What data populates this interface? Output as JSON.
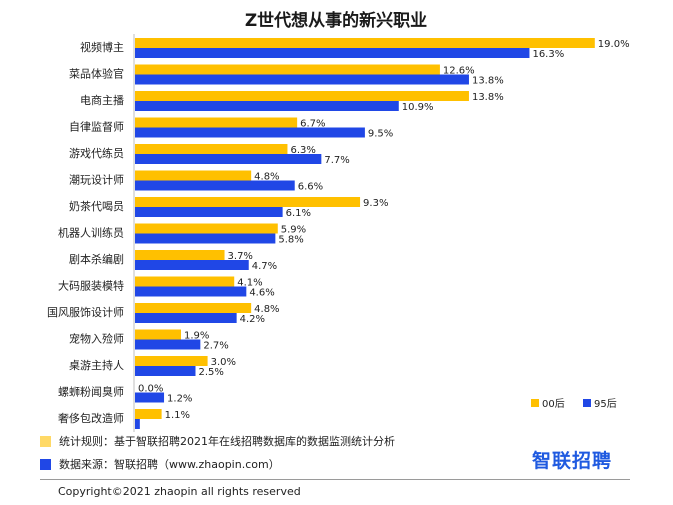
{
  "chart_data": {
    "type": "bar",
    "orientation": "horizontal",
    "title": "Z世代想从事的新兴职业",
    "categories": [
      "视频博主",
      "菜品体验官",
      "电商主播",
      "自律监督师",
      "游戏代练员",
      "潮玩设计师",
      "奶茶代喝员",
      "机器人训练员",
      "剧本杀编剧",
      "大码服装模特",
      "国风服饰设计师",
      "宠物入殓师",
      "桌游主持人",
      "螺蛳粉闻臭师",
      "奢侈包改造师"
    ],
    "series": [
      {
        "name": "00后",
        "color": "#ffc000",
        "values": [
          19.0,
          12.6,
          13.8,
          6.7,
          6.3,
          4.8,
          9.3,
          5.9,
          3.7,
          4.1,
          4.8,
          1.9,
          3.0,
          0.0,
          1.1
        ]
      },
      {
        "name": "95后",
        "color": "#2047e6",
        "values": [
          16.3,
          13.8,
          10.9,
          9.5,
          7.7,
          6.6,
          6.1,
          5.8,
          4.7,
          4.6,
          4.2,
          2.7,
          2.5,
          1.2,
          0.2
        ]
      }
    ],
    "value_labels": {
      "00后": [
        "19.0%",
        "12.6%",
        "13.8%",
        "6.7%",
        "6.3%",
        "4.8%",
        "9.3%",
        "5.9%",
        "3.7%",
        "4.1%",
        "4.8%",
        "1.9%",
        "3.0%",
        "0.0%",
        "1.1%"
      ],
      "95后": [
        "16.3%",
        "13.8%",
        "10.9%",
        "9.5%",
        "7.7%",
        "6.6%",
        "6.1%",
        "5.8%",
        "4.7%",
        "4.6%",
        "4.2%",
        "2.7%",
        "2.5%",
        "1.2%",
        ""
      ]
    },
    "xlim": [
      0,
      20
    ],
    "grid": false,
    "legend_position": "bottom-right"
  },
  "footer": {
    "stat_rule": "统计规则：基于智联招聘2021年在线招聘数据库的数据监测统计分析",
    "stat_rule_color": "#ffd966",
    "source": "数据来源：智联招聘（www.zhaopin.com）",
    "source_color": "#2047e6",
    "brand": "智联招聘",
    "copyright": "Copyright©2021 zhaopin  all rights reserved"
  }
}
